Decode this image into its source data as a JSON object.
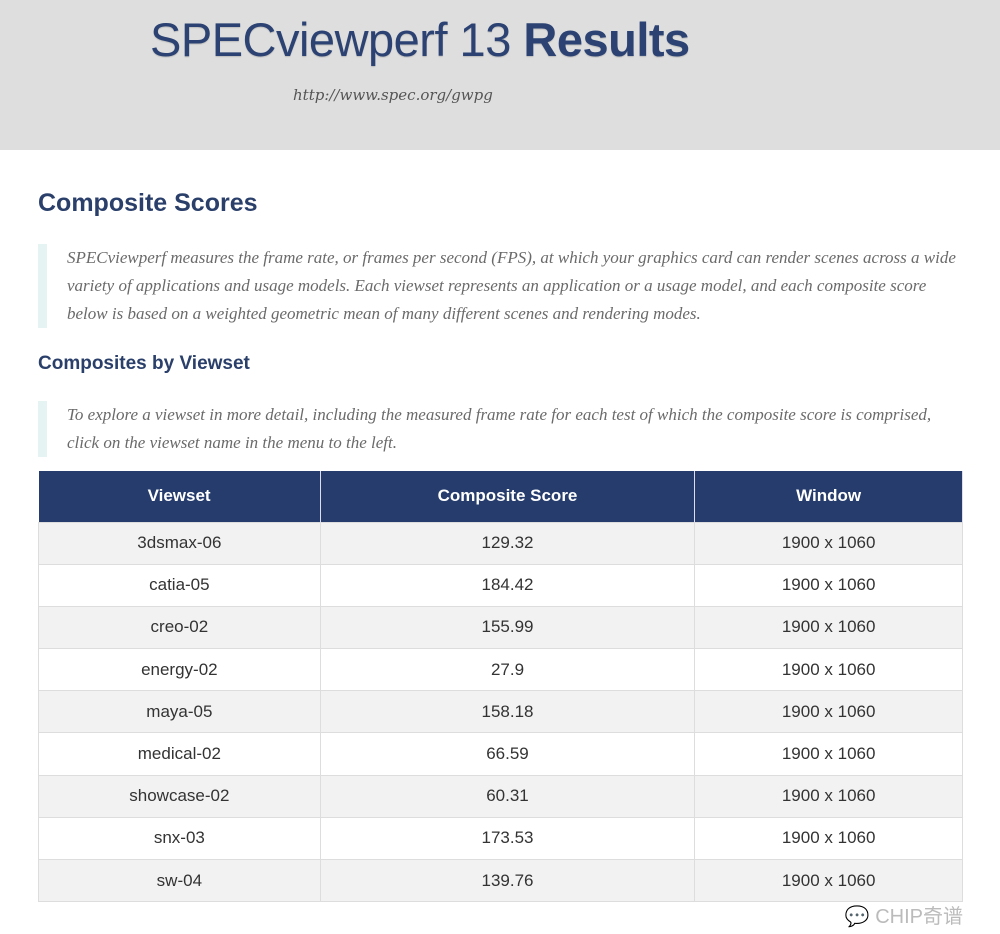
{
  "header": {
    "title_light": "SPECviewperf 13 ",
    "title_bold": "Results",
    "url": "http://www.spec.org/gwpg"
  },
  "composite": {
    "heading": "Composite Scores",
    "description": "SPECviewperf measures the frame rate, or frames per second (FPS), at which your graphics card can render scenes across a wide variety of applications and usage models. Each viewset represents an application or a usage model, and each composite score below is based on a weighted geometric mean of many different scenes and rendering modes."
  },
  "by_viewset": {
    "heading": "Composites by Viewset",
    "description": "To explore a viewset in more detail, including the measured frame rate for each test of which the composite score is comprised, click on the viewset name in the menu to the left."
  },
  "table": {
    "columns": [
      "Viewset",
      "Composite Score",
      "Window"
    ],
    "rows": [
      [
        "3dsmax-06",
        "129.32",
        "1900 x 1060"
      ],
      [
        "catia-05",
        "184.42",
        "1900 x 1060"
      ],
      [
        "creo-02",
        "155.99",
        "1900 x 1060"
      ],
      [
        "energy-02",
        "27.9",
        "1900 x 1060"
      ],
      [
        "maya-05",
        "158.18",
        "1900 x 1060"
      ],
      [
        "medical-02",
        "66.59",
        "1900 x 1060"
      ],
      [
        "showcase-02",
        "60.31",
        "1900 x 1060"
      ],
      [
        "snx-03",
        "173.53",
        "1900 x 1060"
      ],
      [
        "sw-04",
        "139.76",
        "1900 x 1060"
      ]
    ]
  },
  "watermark": "CHIP奇谱",
  "colors": {
    "header_bg": "#dedede",
    "brand": "#253c6d",
    "accent_border": "#e6f3f3"
  }
}
